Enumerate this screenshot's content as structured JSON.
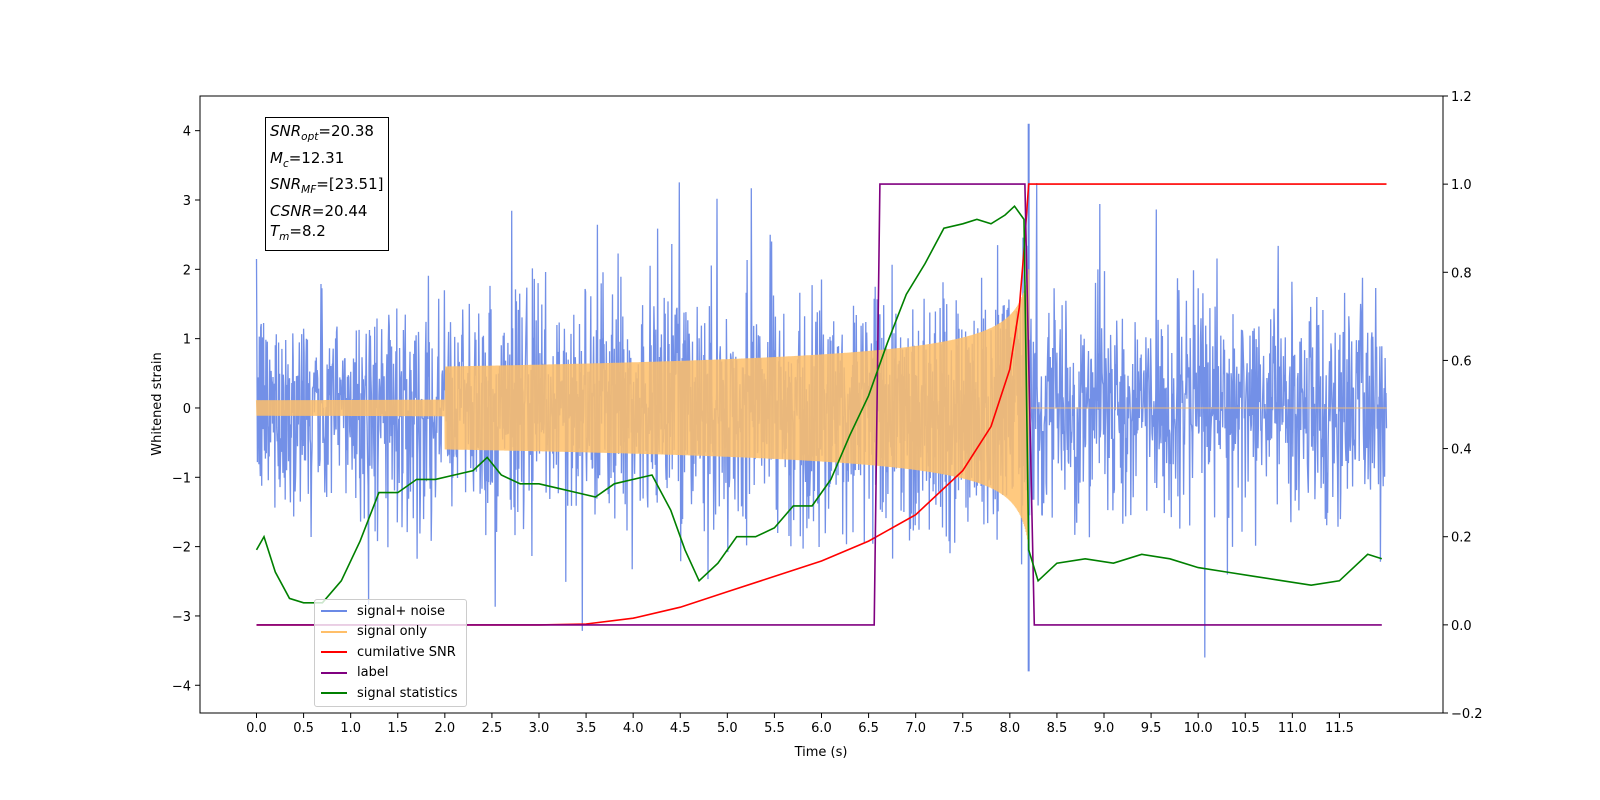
{
  "chart_data": {
    "type": "line",
    "title": "",
    "xlabel": "Time (s)",
    "ylabel": "Whitened strain",
    "xlim": [
      -0.6,
      12.6
    ],
    "ylim": [
      -4.4,
      4.5
    ],
    "y2lim": [
      -0.2,
      1.2
    ],
    "x_ticks": [
      "0.0",
      "0.5",
      "1.0",
      "1.5",
      "2.0",
      "2.5",
      "3.0",
      "3.5",
      "4.0",
      "4.5",
      "5.0",
      "5.5",
      "6.0",
      "6.5",
      "7.0",
      "7.5",
      "8.0",
      "8.5",
      "9.0",
      "9.5",
      "10.0",
      "10.5",
      "11.0",
      "11.5"
    ],
    "y_ticks": [
      "4",
      "3",
      "2",
      "1",
      "0",
      "−1",
      "−2",
      "−3",
      "−4"
    ],
    "y2_ticks": [
      "1.2",
      "1.0",
      "0.8",
      "0.6",
      "0.4",
      "0.2",
      "0.0",
      "−0.2"
    ],
    "grid": false,
    "legend_position": "lower-left",
    "merger_time": 8.2,
    "series": [
      {
        "name": "signal+ noise",
        "color": "#6b8ae6",
        "axis": "left",
        "description_values": "noise band approx ±1.5 with spikes to ±3.5"
      },
      {
        "name": "signal only",
        "color": "#ffbf69",
        "axis": "left",
        "chirp_amplitude_at_merger": 2.0
      },
      {
        "name": "cumilative SNR",
        "color": "#ff0000",
        "axis": "right",
        "x": [
          0,
          3.0,
          3.5,
          4.0,
          4.5,
          5.0,
          5.5,
          6.0,
          6.5,
          7.0,
          7.5,
          7.8,
          8.0,
          8.1,
          8.15,
          8.2,
          12.0
        ],
        "y": [
          0,
          0.0,
          0.002,
          0.015,
          0.04,
          0.075,
          0.11,
          0.145,
          0.19,
          0.25,
          0.35,
          0.45,
          0.58,
          0.72,
          0.85,
          1.0,
          1.0
        ]
      },
      {
        "name": "label",
        "color": "#800080",
        "axis": "right",
        "x": [
          0,
          6.56,
          6.62,
          8.16,
          8.26,
          11.95
        ],
        "y": [
          0,
          0,
          1,
          1,
          0,
          0
        ]
      },
      {
        "name": "signal statistics",
        "color": "#008000",
        "axis": "right",
        "x": [
          0,
          0.08,
          0.2,
          0.35,
          0.5,
          0.7,
          0.9,
          1.1,
          1.3,
          1.5,
          1.7,
          1.9,
          2.1,
          2.3,
          2.45,
          2.6,
          2.8,
          3.0,
          3.2,
          3.4,
          3.6,
          3.8,
          4.0,
          4.2,
          4.4,
          4.55,
          4.7,
          4.9,
          5.1,
          5.3,
          5.5,
          5.7,
          5.9,
          6.1,
          6.3,
          6.5,
          6.7,
          6.9,
          7.1,
          7.3,
          7.5,
          7.65,
          7.8,
          7.95,
          8.05,
          8.15,
          8.2,
          8.3,
          8.5,
          8.8,
          9.1,
          9.4,
          9.7,
          10.0,
          10.3,
          10.6,
          10.9,
          11.2,
          11.5,
          11.8,
          11.95
        ],
        "y": [
          0.17,
          0.2,
          0.12,
          0.06,
          0.05,
          0.05,
          0.1,
          0.19,
          0.3,
          0.3,
          0.33,
          0.33,
          0.34,
          0.35,
          0.38,
          0.34,
          0.32,
          0.32,
          0.31,
          0.3,
          0.29,
          0.32,
          0.33,
          0.34,
          0.26,
          0.17,
          0.1,
          0.14,
          0.2,
          0.2,
          0.22,
          0.27,
          0.27,
          0.33,
          0.43,
          0.52,
          0.64,
          0.75,
          0.82,
          0.9,
          0.91,
          0.92,
          0.91,
          0.93,
          0.95,
          0.92,
          0.17,
          0.1,
          0.14,
          0.15,
          0.14,
          0.16,
          0.15,
          0.13,
          0.12,
          0.11,
          0.1,
          0.09,
          0.1,
          0.16,
          0.15
        ]
      }
    ]
  },
  "stats_box": {
    "snr_opt_sym": "SNR",
    "snr_opt_sub": "opt",
    "snr_opt_val": "=20.38",
    "mc_sym": "M",
    "mc_sub": "c",
    "mc_val": "=12.31",
    "snr_mf_sym": "SNR",
    "snr_mf_sub": "MF",
    "snr_mf_val": "=[23.51]",
    "csnr_sym": "CSNR",
    "csnr_val": "=20.44",
    "tm_sym": "T",
    "tm_sub": "m",
    "tm_val": "=8.2"
  },
  "legend": {
    "entries": [
      {
        "label": "signal+ noise",
        "color": "#6b8ae6"
      },
      {
        "label": "signal only",
        "color": "#ffbf69"
      },
      {
        "label": "cumilative SNR",
        "color": "#ff0000"
      },
      {
        "label": "label",
        "color": "#800080"
      },
      {
        "label": "signal statistics",
        "color": "#008000"
      }
    ]
  }
}
